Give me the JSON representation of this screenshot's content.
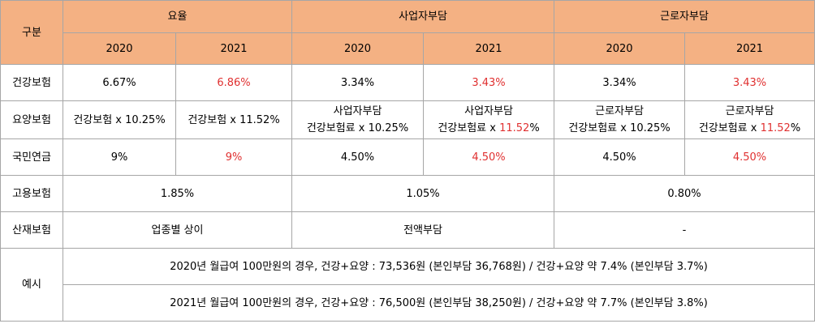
{
  "table": {
    "header": {
      "category": "구분",
      "groups": [
        "요율",
        "사업자부담",
        "근로자부담"
      ],
      "years": [
        "2020",
        "2021",
        "2020",
        "2021",
        "2020",
        "2021"
      ]
    },
    "rows": {
      "health": {
        "label": "건강보험",
        "cells": [
          "6.67%",
          "6.86%",
          "3.34%",
          "3.43%",
          "3.34%",
          "3.43%"
        ]
      },
      "care": {
        "label": "요양보험",
        "rate_2020": "건강보험 x 10.25%",
        "rate_2021": "건강보험 x 11.52%",
        "employer_title": "사업자부담",
        "employee_title": "근로자부담",
        "base_2020": "건강보험료 x 10.25%",
        "base_2021_prefix": "건강보험료 x ",
        "base_2021_value": "11.52",
        "base_2021_suffix": "%"
      },
      "pension": {
        "label": "국민연금",
        "cells": [
          "9%",
          "9%",
          "4.50%",
          "4.50%",
          "4.50%",
          "4.50%"
        ]
      },
      "employment": {
        "label": "고용보험",
        "cells": [
          "1.85%",
          "1.05%",
          "0.80%"
        ]
      },
      "industrial": {
        "label": "산재보험",
        "cells": [
          "업종별 상이",
          "전액부담",
          "-"
        ]
      },
      "example": {
        "label": "예시",
        "lines": [
          "2020년 월급여 100만원의 경우, 건강+요양 : 73,536원 (본인부담 36,768원) / 건강+요양 약 7.4% (본인부담 3.7%)",
          "2021년 월급여 100만원의 경우, 건강+요양 : 76,500원 (본인부담 38,250원) / 건강+요양 약 7.7% (본인부담 3.8%)"
        ]
      }
    },
    "colors": {
      "header_bg": "#f4b183",
      "highlight": "#e03030",
      "border": "#a6a6a6"
    }
  }
}
